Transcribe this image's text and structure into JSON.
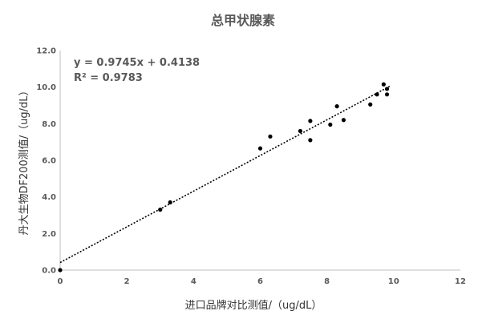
{
  "chart_data": {
    "type": "scatter",
    "title": "总甲状腺素",
    "xlabel": "进口品牌对比测值/（ug/dL）",
    "ylabel": "丹大生物DF200测值/（ug/dL）",
    "xlim": [
      0,
      12
    ],
    "ylim": [
      0,
      12
    ],
    "x_ticks": [
      "0",
      "2",
      "4",
      "6",
      "8",
      "10",
      "12"
    ],
    "y_ticks": [
      "0.0",
      "2.0",
      "4.0",
      "6.0",
      "8.0",
      "10.0",
      "12.0"
    ],
    "grid": false,
    "legend": "none",
    "series": [
      {
        "points": [
          {
            "x": 0.0,
            "y": 0.0
          },
          {
            "x": 3.0,
            "y": 3.3
          },
          {
            "x": 3.3,
            "y": 3.7
          },
          {
            "x": 6.0,
            "y": 6.65
          },
          {
            "x": 6.3,
            "y": 7.3
          },
          {
            "x": 7.2,
            "y": 7.6
          },
          {
            "x": 7.5,
            "y": 8.15
          },
          {
            "x": 7.5,
            "y": 7.1
          },
          {
            "x": 8.1,
            "y": 7.95
          },
          {
            "x": 8.3,
            "y": 8.95
          },
          {
            "x": 8.5,
            "y": 8.2
          },
          {
            "x": 9.3,
            "y": 9.05
          },
          {
            "x": 9.5,
            "y": 9.6
          },
          {
            "x": 9.7,
            "y": 10.15
          },
          {
            "x": 9.8,
            "y": 9.6
          },
          {
            "x": 9.8,
            "y": 9.9
          }
        ]
      }
    ],
    "trendline": {
      "slope": 0.9745,
      "intercept": 0.4138,
      "x_range": [
        0,
        9.9
      ],
      "equation": "y = 0.9745x + 0.4138",
      "r_squared": "R² = 0.9783"
    },
    "colors": {
      "marker": "#000000",
      "trendline": "#000000",
      "axis": "#bfbfbf",
      "text": "#595959"
    }
  }
}
